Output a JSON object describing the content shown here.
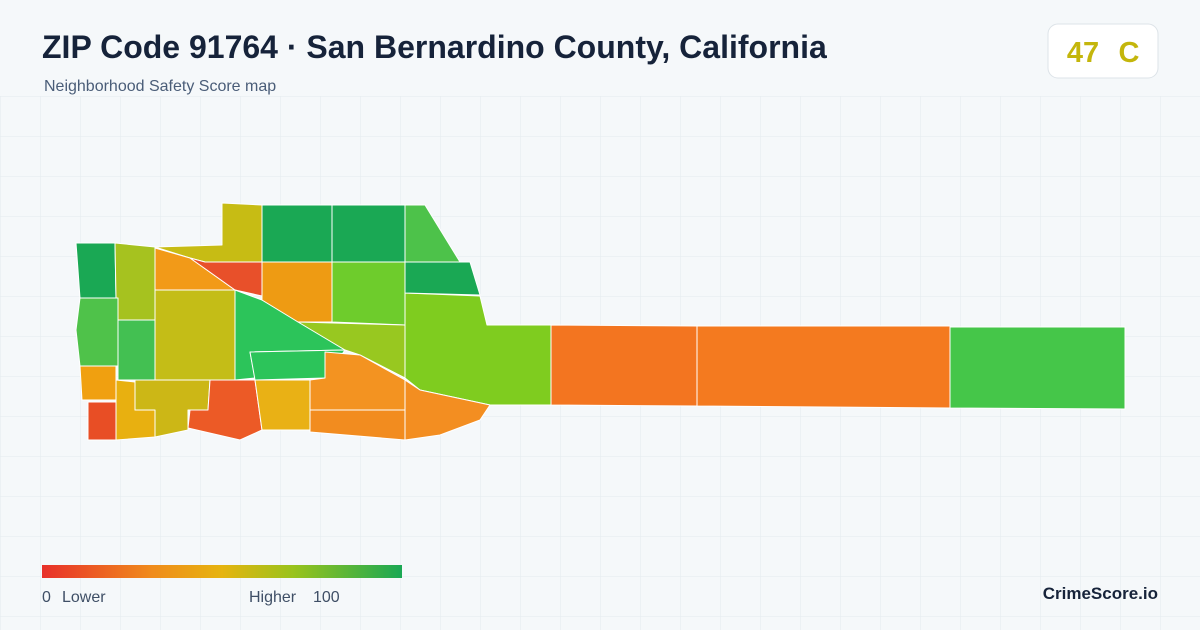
{
  "header": {
    "title": "ZIP Code 91764 · San Bernardino County, California",
    "subtitle": "Neighborhood Safety Score map"
  },
  "score": {
    "value": 47,
    "grade": "C"
  },
  "legend": {
    "min": 0,
    "min_label": "Lower",
    "max_label": "Higher",
    "max": 100
  },
  "footer": {
    "brand": "CrimeScore.io"
  }
}
